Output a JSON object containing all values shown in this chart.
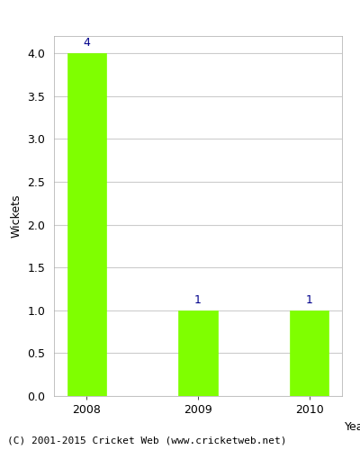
{
  "categories": [
    "2008",
    "2009",
    "2010"
  ],
  "values": [
    4,
    1,
    1
  ],
  "bar_color": "#7fff00",
  "bar_edgecolor": "#7fff00",
  "title": "",
  "xlabel": "Year",
  "ylabel": "Wickets",
  "ylim": [
    0,
    4.2
  ],
  "yticks": [
    0.0,
    0.5,
    1.0,
    1.5,
    2.0,
    2.5,
    3.0,
    3.5,
    4.0
  ],
  "annotation_color": "#00008B",
  "annotation_fontsize": 9,
  "axis_label_fontsize": 9,
  "tick_fontsize": 9,
  "footer_text": "(C) 2001-2015 Cricket Web (www.cricketweb.net)",
  "footer_fontsize": 8,
  "background_color": "#ffffff",
  "grid_color": "#cccccc",
  "bar_width": 0.35
}
